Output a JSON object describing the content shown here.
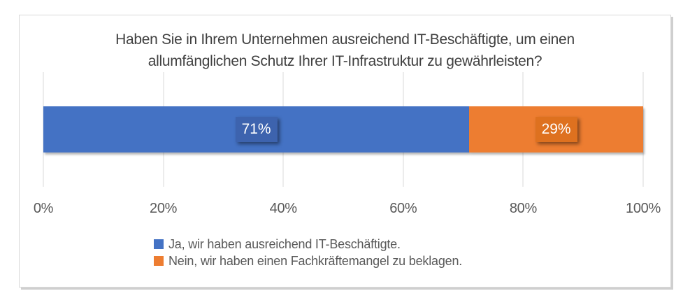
{
  "chart_data": {
    "type": "bar",
    "orientation": "horizontal",
    "stacked": true,
    "title": "Haben Sie in Ihrem Unternehmen ausreichend IT-Beschäftigte, um einen allumfänglichen Schutz Ihrer IT-Infrastruktur zu gewährleisten?",
    "title_lines": [
      "Haben Sie in Ihrem Unternehmen ausreichend IT-Beschäftigte, um einen",
      "allumfänglichen Schutz Ihrer IT-Infrastruktur zu gewährleisten?"
    ],
    "series": [
      {
        "id": "ja",
        "name": "Ja, wir haben ausreichend IT-Beschäftigte.",
        "value": 71,
        "label": "71%",
        "color": "#4472C4",
        "label_fill": "#3D63AE"
      },
      {
        "id": "nein",
        "name": "Nein, wir haben einen Fachkräftemangel zu beklagen.",
        "value": 29,
        "label": "29%",
        "color": "#ED7D31",
        "label_fill": "#DE711F"
      }
    ],
    "x_ticks": [
      "0%",
      "20%",
      "40%",
      "60%",
      "80%",
      "100%"
    ],
    "xlim": [
      0,
      100
    ],
    "xlabel": "",
    "ylabel": "",
    "grid": "vertical",
    "legend_position": "bottom",
    "colors": {
      "gridline": "#D9D9D9",
      "frame_border": "#D9D9D9",
      "frame_shadow": "#CFCFCF",
      "title_text": "#404040",
      "axis_text": "#595959",
      "legend_text": "#595959",
      "data_label_text": "#FFFFFF",
      "background": "#FFFFFF"
    }
  }
}
